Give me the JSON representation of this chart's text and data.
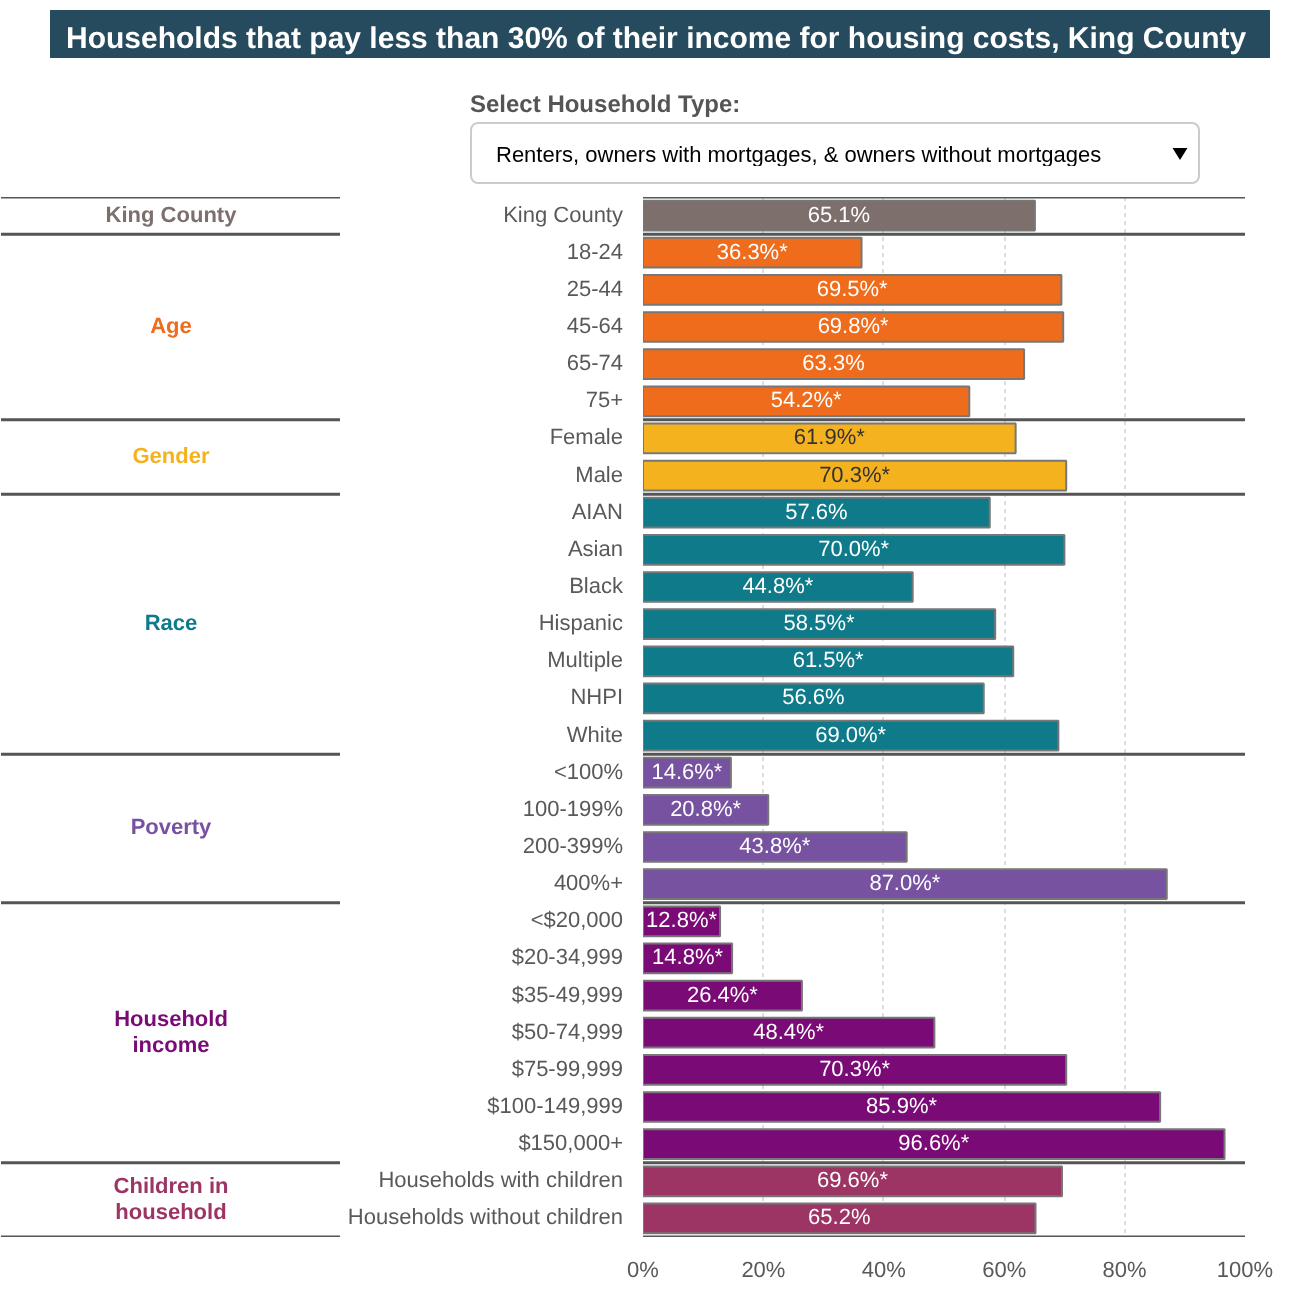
{
  "chart_data": {
    "type": "bar",
    "orientation": "horizontal",
    "title": "Households that pay less than 30% of their income for housing costs, King County",
    "annotations": [
      "Select Household Type:",
      "Renters, owners with mortgages, & owners without mortgages"
    ],
    "categories": [
      "King County",
      "18-24",
      "25-44",
      "45-64",
      "65-74",
      "75+",
      "Female",
      "Male",
      "AIAN",
      "Asian",
      "Black",
      "Hispanic",
      "Multiple",
      "NHPI",
      "White",
      "<100%",
      "100-199%",
      "200-399%",
      "400%+",
      "<$20,000",
      "$20-34,999",
      "$35-49,999",
      "$50-74,999",
      "$75-99,999",
      "$100-149,999",
      "$150,000+",
      "Households with children",
      "Households without children"
    ],
    "series": [
      {
        "name": "King County",
        "color": "#7d6f6c",
        "values": [
          65.1,
          null,
          null,
          null,
          null,
          null,
          null,
          null,
          null,
          null,
          null,
          null,
          null,
          null,
          null,
          null,
          null,
          null,
          null,
          null,
          null,
          null,
          null,
          null,
          null,
          null,
          null,
          null
        ],
        "value_labels": [
          "65.1%",
          null,
          null,
          null,
          null,
          null,
          null,
          null,
          null,
          null,
          null,
          null,
          null,
          null,
          null,
          null,
          null,
          null,
          null,
          null,
          null,
          null,
          null,
          null,
          null,
          null,
          null,
          null
        ]
      },
      {
        "name": "Age",
        "color": "#ee6c1b",
        "values": [
          null,
          36.3,
          69.5,
          69.8,
          63.3,
          54.2,
          null,
          null,
          null,
          null,
          null,
          null,
          null,
          null,
          null,
          null,
          null,
          null,
          null,
          null,
          null,
          null,
          null,
          null,
          null,
          null,
          null,
          null
        ],
        "value_labels": [
          null,
          "36.3%*",
          "69.5%*",
          "69.8%*",
          "63.3%",
          "54.2%*",
          null,
          null,
          null,
          null,
          null,
          null,
          null,
          null,
          null,
          null,
          null,
          null,
          null,
          null,
          null,
          null,
          null,
          null,
          null,
          null,
          null,
          null
        ]
      },
      {
        "name": "Gender",
        "color": "#f5b21f",
        "values": [
          null,
          null,
          null,
          null,
          null,
          null,
          61.9,
          70.3,
          null,
          null,
          null,
          null,
          null,
          null,
          null,
          null,
          null,
          null,
          null,
          null,
          null,
          null,
          null,
          null,
          null,
          null,
          null,
          null
        ],
        "value_labels": [
          null,
          null,
          null,
          null,
          null,
          null,
          "61.9%*",
          "70.3%*",
          null,
          null,
          null,
          null,
          null,
          null,
          null,
          null,
          null,
          null,
          null,
          null,
          null,
          null,
          null,
          null,
          null,
          null,
          null,
          null
        ]
      },
      {
        "name": "Race",
        "color": "#0f7b8a",
        "values": [
          null,
          null,
          null,
          null,
          null,
          null,
          null,
          null,
          57.6,
          70.0,
          44.8,
          58.5,
          61.5,
          56.6,
          69.0,
          null,
          null,
          null,
          null,
          null,
          null,
          null,
          null,
          null,
          null,
          null,
          null,
          null
        ],
        "value_labels": [
          null,
          null,
          null,
          null,
          null,
          null,
          null,
          null,
          "57.6%",
          "70.0%*",
          "44.8%*",
          "58.5%*",
          "61.5%*",
          "56.6%",
          "69.0%*",
          null,
          null,
          null,
          null,
          null,
          null,
          null,
          null,
          null,
          null,
          null,
          null,
          null
        ]
      },
      {
        "name": "Poverty",
        "color": "#7752a0",
        "values": [
          null,
          null,
          null,
          null,
          null,
          null,
          null,
          null,
          null,
          null,
          null,
          null,
          null,
          null,
          null,
          14.6,
          20.8,
          43.8,
          87.0,
          null,
          null,
          null,
          null,
          null,
          null,
          null,
          null,
          null
        ],
        "value_labels": [
          null,
          null,
          null,
          null,
          null,
          null,
          null,
          null,
          null,
          null,
          null,
          null,
          null,
          null,
          null,
          "14.6%*",
          "20.8%*",
          "43.8%*",
          "87.0%*",
          null,
          null,
          null,
          null,
          null,
          null,
          null,
          null,
          null
        ]
      },
      {
        "name": "Household income",
        "color": "#7a0b76",
        "values": [
          null,
          null,
          null,
          null,
          null,
          null,
          null,
          null,
          null,
          null,
          null,
          null,
          null,
          null,
          null,
          null,
          null,
          null,
          null,
          12.8,
          14.8,
          26.4,
          48.4,
          70.3,
          85.9,
          96.6,
          null,
          null
        ],
        "value_labels": [
          null,
          null,
          null,
          null,
          null,
          null,
          null,
          null,
          null,
          null,
          null,
          null,
          null,
          null,
          null,
          null,
          null,
          null,
          null,
          "12.8%*",
          "14.8%*",
          "26.4%*",
          "48.4%*",
          "70.3%*",
          "85.9%*",
          "96.6%*",
          null,
          null
        ]
      },
      {
        "name": "Children in household",
        "color": "#9c3563",
        "values": [
          null,
          null,
          null,
          null,
          null,
          null,
          null,
          null,
          null,
          null,
          null,
          null,
          null,
          null,
          null,
          null,
          null,
          null,
          null,
          null,
          null,
          null,
          null,
          null,
          null,
          null,
          69.6,
          65.2
        ],
        "value_labels": [
          null,
          null,
          null,
          null,
          null,
          null,
          null,
          null,
          null,
          null,
          null,
          null,
          null,
          null,
          null,
          null,
          null,
          null,
          null,
          null,
          null,
          null,
          null,
          null,
          null,
          null,
          "69.6%*",
          "65.2%"
        ]
      }
    ],
    "xlim": [
      0,
      100
    ],
    "xticks": [
      {
        "value": 0,
        "label": "0%"
      },
      {
        "value": 20,
        "label": "20%"
      },
      {
        "value": 40,
        "label": "40%"
      },
      {
        "value": 60,
        "label": "60%"
      },
      {
        "value": 80,
        "label": "80%"
      },
      {
        "value": 100,
        "label": "100%"
      }
    ],
    "grid": "x"
  }
}
